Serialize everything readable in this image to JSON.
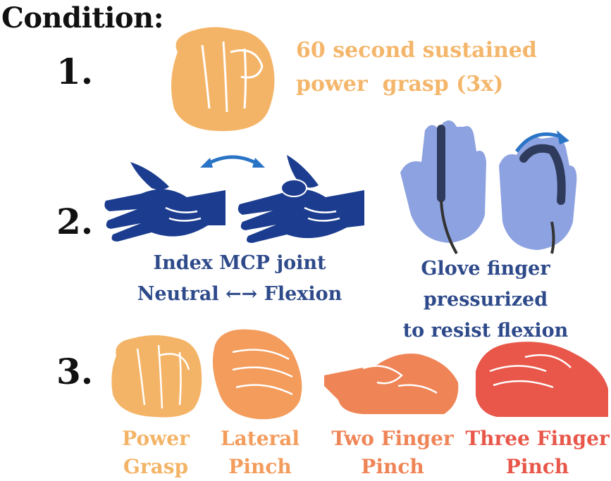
{
  "title": "Condition:",
  "conditions": [
    {
      "number": "1.",
      "lines": [
        "60 second sustained",
        "power  grasp (3x)"
      ]
    },
    {
      "number": "2.",
      "left_caption": [
        "Index MCP joint",
        "Neutral",
        "Flexion"
      ],
      "right_caption": [
        "Glove finger pressurized",
        "to resist flexion"
      ]
    },
    {
      "number": "3.",
      "grasps": [
        {
          "lines": [
            "Power",
            "Grasp"
          ],
          "color": "#f4b467"
        },
        {
          "lines": [
            "Lateral",
            "Pinch"
          ],
          "color": "#f39c5c"
        },
        {
          "lines": [
            "Two Finger",
            "Pinch"
          ],
          "color": "#ef8456"
        },
        {
          "lines": [
            "Three Finger",
            "Pinch"
          ],
          "color": "#e8574a"
        }
      ]
    }
  ],
  "colors": {
    "orange_light": "#f4b66b",
    "blue_dark": "#1c3d8f",
    "glove_blue": "#7d94d9",
    "text_blue": "#2e4a8a",
    "arrow_blue": "#2a74c6"
  },
  "icons": [
    "fist-icon",
    "hand-neutral-icon",
    "hand-flexion-icon",
    "glove-icon",
    "curved-arrow-icon",
    "double-arrow-icon"
  ]
}
